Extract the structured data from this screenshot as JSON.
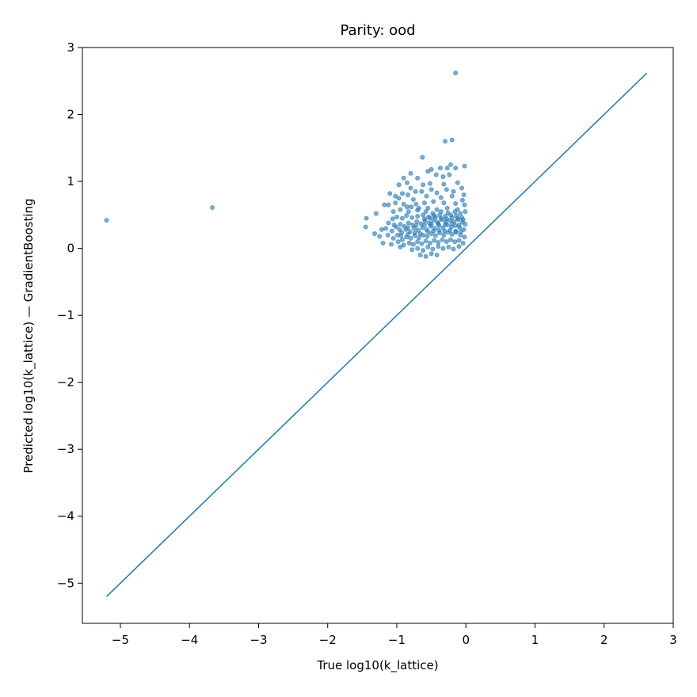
{
  "chart_data": {
    "type": "scatter",
    "title": "Parity: ood",
    "xlabel": "True log10(k_lattice)",
    "ylabel": "Predicted log10(k_lattice) — GradientBoosting",
    "xlim": [
      -5.55,
      3.0
    ],
    "ylim": [
      -5.6,
      3.0
    ],
    "x_ticks": [
      -5,
      -4,
      -3,
      -2,
      -1,
      0,
      1,
      2,
      3
    ],
    "y_ticks": [
      -5,
      -4,
      -3,
      -2,
      -1,
      0,
      1,
      2,
      3
    ],
    "x_tick_labels": [
      "−5",
      "−4",
      "−3",
      "−2",
      "−1",
      "0",
      "1",
      "2",
      "3"
    ],
    "y_tick_labels": [
      "−5",
      "−4",
      "−3",
      "−2",
      "−1",
      "0",
      "1",
      "2",
      "3"
    ],
    "grid": false,
    "marker_color": "#1f77b4",
    "marker_opacity": 0.6,
    "parity_line": {
      "x": [
        -5.2,
        2.62
      ],
      "y": [
        -5.2,
        2.62
      ],
      "color": "#1f77b4"
    },
    "series": [
      {
        "points": [
          [
            -5.2,
            0.42
          ],
          [
            -3.67,
            0.61
          ],
          [
            -0.15,
            2.62
          ],
          [
            -0.3,
            1.6
          ],
          [
            -0.2,
            1.62
          ],
          [
            -0.63,
            1.36
          ],
          [
            -0.22,
            1.25
          ],
          [
            -0.02,
            1.23
          ],
          [
            -0.5,
            1.18
          ],
          [
            -0.37,
            1.2
          ],
          [
            -0.27,
            1.2
          ],
          [
            -0.15,
            1.2
          ],
          [
            -0.8,
            1.12
          ],
          [
            -0.7,
            1.05
          ],
          [
            -0.55,
            1.15
          ],
          [
            -0.43,
            1.1
          ],
          [
            -0.33,
            1.07
          ],
          [
            -0.24,
            1.1
          ],
          [
            -0.9,
            1.05
          ],
          [
            -0.97,
            0.95
          ],
          [
            -0.85,
            0.98
          ],
          [
            -0.62,
            0.95
          ],
          [
            -0.52,
            0.97
          ],
          [
            -0.32,
            0.96
          ],
          [
            -0.12,
            0.98
          ],
          [
            -0.06,
            0.9
          ],
          [
            -0.8,
            0.9
          ],
          [
            -0.92,
            0.82
          ],
          [
            -0.84,
            0.8
          ],
          [
            -0.73,
            0.85
          ],
          [
            -0.64,
            0.85
          ],
          [
            -0.5,
            0.88
          ],
          [
            -0.42,
            0.83
          ],
          [
            -0.28,
            0.88
          ],
          [
            -0.18,
            0.85
          ],
          [
            -0.03,
            0.8
          ],
          [
            -1.1,
            0.82
          ],
          [
            -1.02,
            0.78
          ],
          [
            -0.97,
            0.75
          ],
          [
            -0.76,
            0.73
          ],
          [
            -0.57,
            0.78
          ],
          [
            -0.36,
            0.76
          ],
          [
            -0.2,
            0.78
          ],
          [
            -0.05,
            0.72
          ],
          [
            -1.18,
            0.65
          ],
          [
            -1.12,
            0.65
          ],
          [
            -1.02,
            0.68
          ],
          [
            -0.9,
            0.66
          ],
          [
            -0.85,
            0.62
          ],
          [
            -0.72,
            0.66
          ],
          [
            -0.6,
            0.68
          ],
          [
            -0.47,
            0.7
          ],
          [
            -0.32,
            0.68
          ],
          [
            -0.15,
            0.67
          ],
          [
            -0.02,
            0.65
          ],
          [
            -1.44,
            0.45
          ],
          [
            -1.45,
            0.32
          ],
          [
            -1.3,
            0.52
          ],
          [
            -1.05,
            0.55
          ],
          [
            -0.95,
            0.58
          ],
          [
            -0.83,
            0.55
          ],
          [
            -0.7,
            0.57
          ],
          [
            -0.55,
            0.6
          ],
          [
            -0.42,
            0.58
          ],
          [
            -0.27,
            0.6
          ],
          [
            -0.12,
            0.58
          ],
          [
            -0.01,
            0.55
          ],
          [
            -1.22,
            0.28
          ],
          [
            -1.12,
            0.38
          ],
          [
            -1.06,
            0.44
          ],
          [
            -1.0,
            0.47
          ],
          [
            -0.92,
            0.45
          ],
          [
            -0.86,
            0.49
          ],
          [
            -0.78,
            0.46
          ],
          [
            -0.7,
            0.48
          ],
          [
            -0.62,
            0.5
          ],
          [
            -0.54,
            0.47
          ],
          [
            -0.46,
            0.49
          ],
          [
            -0.38,
            0.5
          ],
          [
            -0.3,
            0.48
          ],
          [
            -0.22,
            0.5
          ],
          [
            -0.14,
            0.49
          ],
          [
            -0.06,
            0.46
          ],
          [
            -1.13,
            0.2
          ],
          [
            -1.07,
            0.26
          ],
          [
            -1.01,
            0.32
          ],
          [
            -0.95,
            0.36
          ],
          [
            -0.89,
            0.33
          ],
          [
            -0.83,
            0.38
          ],
          [
            -0.77,
            0.35
          ],
          [
            -0.71,
            0.4
          ],
          [
            -0.65,
            0.37
          ],
          [
            -0.59,
            0.41
          ],
          [
            -0.53,
            0.38
          ],
          [
            -0.47,
            0.42
          ],
          [
            -0.41,
            0.39
          ],
          [
            -0.35,
            0.43
          ],
          [
            -0.29,
            0.4
          ],
          [
            -0.23,
            0.42
          ],
          [
            -0.17,
            0.4
          ],
          [
            -0.11,
            0.43
          ],
          [
            -0.05,
            0.39
          ],
          [
            -0.01,
            0.36
          ],
          [
            -1.05,
            0.15
          ],
          [
            -0.99,
            0.2
          ],
          [
            -0.93,
            0.24
          ],
          [
            -0.87,
            0.28
          ],
          [
            -0.81,
            0.25
          ],
          [
            -0.75,
            0.3
          ],
          [
            -0.69,
            0.27
          ],
          [
            -0.63,
            0.31
          ],
          [
            -0.57,
            0.28
          ],
          [
            -0.51,
            0.33
          ],
          [
            -0.45,
            0.3
          ],
          [
            -0.39,
            0.34
          ],
          [
            -0.33,
            0.31
          ],
          [
            -0.27,
            0.35
          ],
          [
            -0.21,
            0.32
          ],
          [
            -0.15,
            0.34
          ],
          [
            -0.09,
            0.31
          ],
          [
            -0.03,
            0.28
          ],
          [
            -0.98,
            0.1
          ],
          [
            -0.92,
            0.13
          ],
          [
            -0.86,
            0.17
          ],
          [
            -0.8,
            0.15
          ],
          [
            -0.74,
            0.19
          ],
          [
            -0.68,
            0.16
          ],
          [
            -0.62,
            0.2
          ],
          [
            -0.56,
            0.18
          ],
          [
            -0.5,
            0.22
          ],
          [
            -0.44,
            0.19
          ],
          [
            -0.38,
            0.23
          ],
          [
            -0.32,
            0.2
          ],
          [
            -0.26,
            0.24
          ],
          [
            -0.2,
            0.21
          ],
          [
            -0.14,
            0.24
          ],
          [
            -0.08,
            0.2
          ],
          [
            -0.02,
            0.17
          ],
          [
            -0.9,
            0.05
          ],
          [
            -0.82,
            0.08
          ],
          [
            -0.76,
            0.06
          ],
          [
            -0.7,
            0.1
          ],
          [
            -0.64,
            0.07
          ],
          [
            -0.58,
            0.11
          ],
          [
            -0.52,
            0.08
          ],
          [
            -0.46,
            0.12
          ],
          [
            -0.4,
            0.09
          ],
          [
            -0.34,
            0.13
          ],
          [
            -0.28,
            0.1
          ],
          [
            -0.22,
            0.13
          ],
          [
            -0.16,
            0.1
          ],
          [
            -0.1,
            0.12
          ],
          [
            -0.04,
            0.08
          ],
          [
            -0.78,
            -0.02
          ],
          [
            -0.7,
            0.0
          ],
          [
            -0.62,
            -0.03
          ],
          [
            -0.55,
            0.02
          ],
          [
            -0.48,
            -0.01
          ],
          [
            -0.4,
            0.03
          ],
          [
            -0.33,
            0.0
          ],
          [
            -0.25,
            0.02
          ],
          [
            -0.18,
            -0.01
          ],
          [
            -0.1,
            0.03
          ],
          [
            -0.66,
            -0.1
          ],
          [
            -0.58,
            -0.12
          ],
          [
            -0.5,
            -0.08
          ],
          [
            -0.42,
            -0.1
          ],
          [
            -1.2,
            0.08
          ],
          [
            -1.08,
            0.06
          ],
          [
            -0.95,
            0.02
          ],
          [
            -1.25,
            0.18
          ],
          [
            -1.16,
            0.3
          ],
          [
            -1.32,
            0.22
          ],
          [
            -0.58,
            0.55
          ],
          [
            -0.48,
            0.52
          ],
          [
            -0.36,
            0.55
          ],
          [
            -0.26,
            0.53
          ],
          [
            -0.16,
            0.55
          ],
          [
            -0.08,
            0.52
          ],
          [
            -0.68,
            0.6
          ],
          [
            -0.79,
            0.62
          ],
          [
            -0.6,
            0.44
          ],
          [
            -0.52,
            0.45
          ],
          [
            -0.44,
            0.46
          ],
          [
            -0.36,
            0.45
          ],
          [
            -0.28,
            0.44
          ],
          [
            -0.2,
            0.46
          ],
          [
            -0.12,
            0.45
          ],
          [
            -0.04,
            0.43
          ],
          [
            -0.55,
            0.25
          ],
          [
            -0.47,
            0.26
          ],
          [
            -0.39,
            0.27
          ],
          [
            -0.31,
            0.26
          ],
          [
            -0.23,
            0.27
          ],
          [
            -0.15,
            0.26
          ],
          [
            -0.07,
            0.25
          ],
          [
            -0.66,
            0.22
          ],
          [
            -0.74,
            0.23
          ],
          [
            -0.84,
            0.21
          ],
          [
            -0.94,
            0.19
          ],
          [
            -0.6,
            0.35
          ],
          [
            -0.5,
            0.36
          ],
          [
            -0.4,
            0.37
          ],
          [
            -0.3,
            0.36
          ],
          [
            -0.2,
            0.37
          ],
          [
            -0.1,
            0.35
          ],
          [
            -0.72,
            0.34
          ],
          [
            -0.84,
            0.31
          ],
          [
            -0.96,
            0.28
          ],
          [
            -1.04,
            0.35
          ]
        ]
      }
    ]
  }
}
